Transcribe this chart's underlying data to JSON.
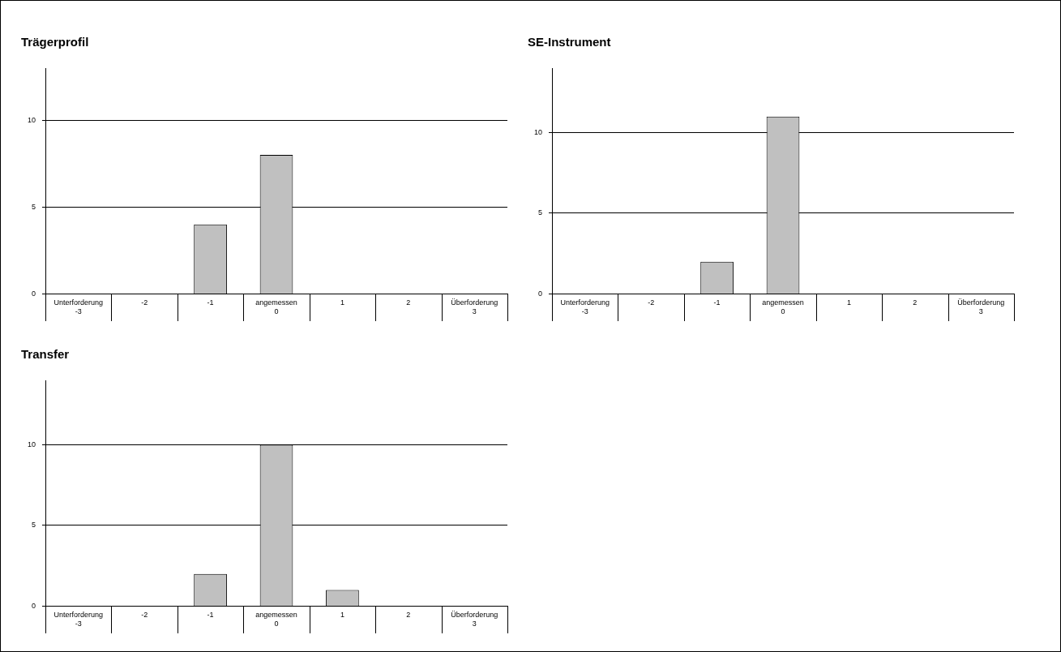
{
  "chart_data": [
    {
      "type": "bar",
      "title": "Trägerprofil",
      "categories": [
        "Unterforderung\n-3",
        "-2",
        "-1",
        "angemessen\n0",
        "1",
        "2",
        "Überforderung\n3"
      ],
      "values": [
        0,
        0,
        4,
        8,
        0,
        0,
        0
      ],
      "color": "#c0c0c0",
      "ylim": [
        0,
        13
      ],
      "yticks": [
        0,
        5,
        10
      ],
      "grid": "y"
    },
    {
      "type": "bar",
      "title": "SE-Instrument",
      "categories": [
        "Unterforderung\n-3",
        "-2",
        "-1",
        "angemessen\n0",
        "1",
        "2",
        "Überforderung\n3"
      ],
      "values": [
        0,
        0,
        2,
        11,
        0,
        0,
        0
      ],
      "color": "#c0c0c0",
      "ylim": [
        0,
        14
      ],
      "yticks": [
        0,
        5,
        10
      ],
      "grid": "y"
    },
    {
      "type": "bar",
      "title": "Transfer",
      "categories": [
        "Unterforderung\n-3",
        "-2",
        "-1",
        "angemessen\n0",
        "1",
        "2",
        "Überforderung\n3"
      ],
      "values": [
        0,
        0,
        2,
        10,
        1,
        0,
        0
      ],
      "color": "#c0c0c0",
      "ylim": [
        0,
        14
      ],
      "yticks": [
        0,
        5,
        10
      ],
      "grid": "y"
    }
  ]
}
